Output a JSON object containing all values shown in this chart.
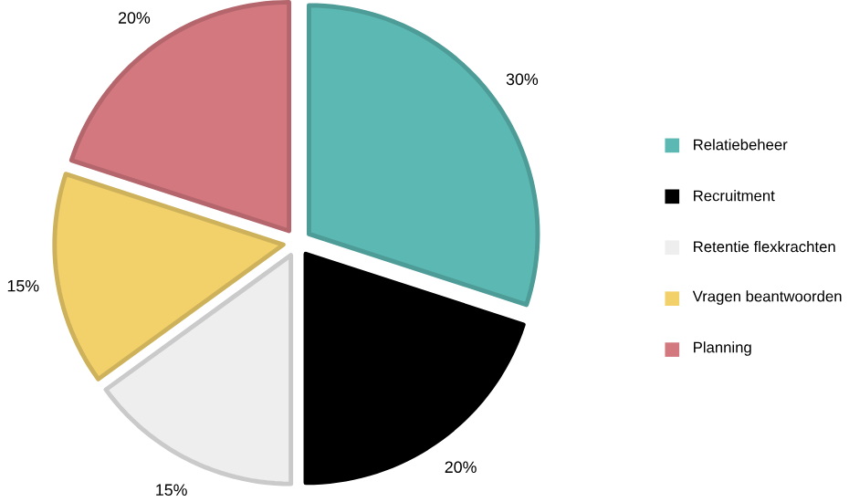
{
  "chart_data": {
    "type": "pie",
    "categories": [
      "Relatiebeheer",
      "Recruitment",
      "Retentie flexkrachten",
      "Vragen beantwoorden",
      "Planning"
    ],
    "values": [
      30,
      20,
      15,
      15,
      20
    ],
    "colors": [
      "#5cb8b2",
      "#000000",
      "#eeeeee",
      "#f2d16b",
      "#d4787f"
    ],
    "value_labels": [
      "30%",
      "20%",
      "15%",
      "15%",
      "20%"
    ],
    "legend": "right"
  }
}
